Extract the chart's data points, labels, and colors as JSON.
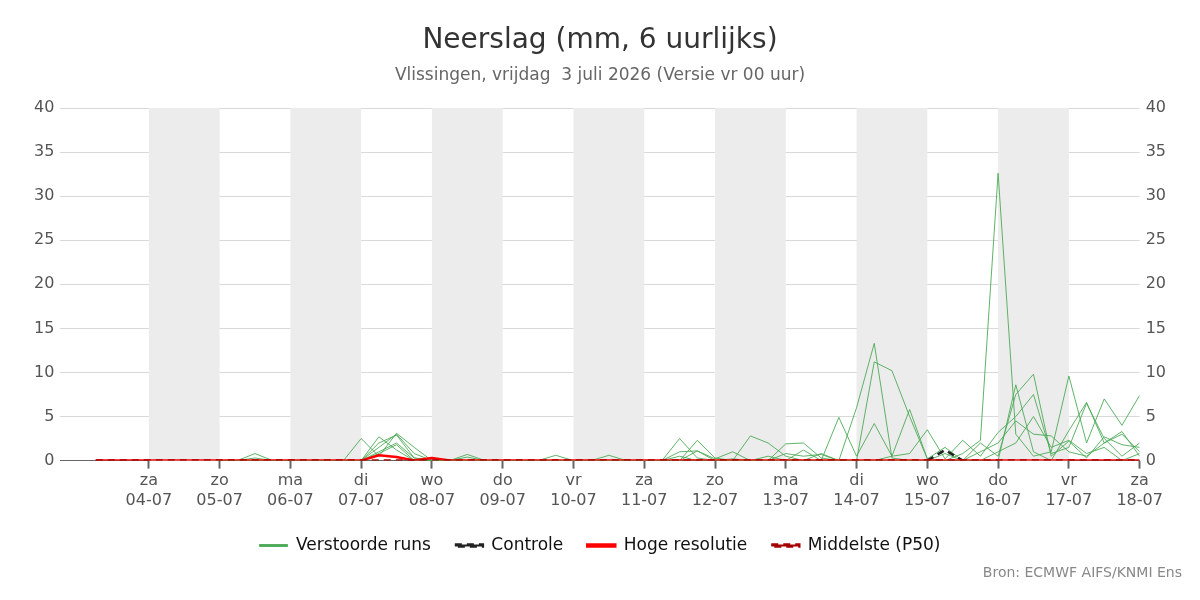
{
  "chart_data": {
    "type": "line",
    "title": "Neerslag (mm, 6 uurlijks)",
    "subtitle": "Vlissingen, vrijdag  3 juli 2026 (Versie vr 00 uur)",
    "x": [
      "2026-07-03T06:00",
      "2026-07-03T12:00",
      "2026-07-03T18:00",
      "2026-07-04T00:00",
      "2026-07-04T06:00",
      "2026-07-04T12:00",
      "2026-07-04T18:00",
      "2026-07-05T00:00",
      "2026-07-05T06:00",
      "2026-07-05T12:00",
      "2026-07-05T18:00",
      "2026-07-06T00:00",
      "2026-07-06T06:00",
      "2026-07-06T12:00",
      "2026-07-06T18:00",
      "2026-07-07T00:00",
      "2026-07-07T06:00",
      "2026-07-07T12:00",
      "2026-07-07T18:00",
      "2026-07-08T00:00",
      "2026-07-08T06:00",
      "2026-07-08T12:00",
      "2026-07-08T18:00",
      "2026-07-09T00:00",
      "2026-07-09T06:00",
      "2026-07-09T12:00",
      "2026-07-09T18:00",
      "2026-07-10T00:00",
      "2026-07-10T06:00",
      "2026-07-10T12:00",
      "2026-07-10T18:00",
      "2026-07-11T00:00",
      "2026-07-11T06:00",
      "2026-07-11T12:00",
      "2026-07-11T18:00",
      "2026-07-12T00:00",
      "2026-07-12T06:00",
      "2026-07-12T12:00",
      "2026-07-12T18:00",
      "2026-07-13T00:00",
      "2026-07-13T06:00",
      "2026-07-13T12:00",
      "2026-07-13T18:00",
      "2026-07-14T00:00",
      "2026-07-14T06:00",
      "2026-07-14T12:00",
      "2026-07-14T18:00",
      "2026-07-15T00:00",
      "2026-07-15T06:00",
      "2026-07-15T12:00",
      "2026-07-15T18:00",
      "2026-07-16T00:00",
      "2026-07-16T06:00",
      "2026-07-16T12:00",
      "2026-07-16T18:00",
      "2026-07-17T00:00",
      "2026-07-17T06:00",
      "2026-07-17T12:00",
      "2026-07-17T18:00",
      "2026-07-18T00:00"
    ],
    "series": [
      {
        "name": "Verstoorde runs",
        "color": "#4daa57",
        "values": [
          null,
          null,
          null,
          null,
          null,
          null,
          null,
          0,
          0,
          0.8,
          0,
          0,
          0,
          0,
          0,
          0,
          2.7,
          1.2,
          0,
          0,
          0,
          0,
          0,
          0,
          0,
          0,
          0.6,
          0,
          0,
          0,
          0,
          0,
          0,
          2.5,
          0.3,
          0,
          0,
          2.8,
          2.0,
          0.5,
          0,
          0,
          0,
          6.0,
          13.3,
          0.3,
          0,
          0,
          0,
          0.8,
          2.3,
          32.6,
          3.0,
          0.5,
          1.0,
          9.6,
          2.0,
          7.0,
          4.0,
          7.4
        ]
      },
      {
        "color": "#4daa57",
        "values": [
          null,
          null,
          null,
          null,
          null,
          null,
          null,
          0,
          0,
          0,
          0,
          0,
          0,
          0,
          0,
          2.5,
          0.5,
          3.1,
          1.5,
          0,
          0,
          0.7,
          0,
          0,
          0,
          0,
          0,
          0,
          0,
          0.6,
          0,
          0,
          0,
          0,
          2.3,
          0.3,
          0,
          0,
          0,
          1.9,
          2.0,
          0.3,
          0,
          0,
          11.2,
          10.2,
          5.0,
          0.2,
          0,
          0,
          0,
          0,
          8.6,
          1.0,
          0,
          3.4,
          6.6,
          2.0,
          3.3,
          0.5
        ]
      },
      {
        "color": "#4daa57",
        "values": [
          null,
          null,
          null,
          null,
          null,
          null,
          null,
          0,
          0,
          0,
          0,
          0,
          0,
          0,
          0,
          0,
          2.0,
          2.9,
          0.3,
          0,
          0,
          0,
          0,
          0,
          0,
          0,
          0,
          0,
          0,
          0,
          0,
          0,
          0,
          1.0,
          1.1,
          0.2,
          1.0,
          0,
          0.5,
          0,
          1.2,
          0,
          4.9,
          0.5,
          4.2,
          0.5,
          5.8,
          0.2,
          1.5,
          0,
          2.0,
          0.5,
          7.5,
          9.8,
          0.5,
          2.2,
          0.3,
          2.7,
          1.8,
          1.5
        ]
      },
      {
        "color": "#4daa57",
        "values": [
          null,
          null,
          null,
          null,
          null,
          null,
          null,
          0,
          0,
          0,
          0,
          0,
          0,
          0,
          0,
          0,
          1.5,
          3.0,
          0.8,
          0,
          0,
          0,
          0,
          0,
          0,
          0,
          0,
          0,
          0,
          0,
          0,
          0,
          0,
          0,
          0,
          0,
          0.2,
          0,
          0,
          0,
          0,
          0.8,
          0,
          0,
          0,
          0.5,
          0.8,
          3.5,
          0.2,
          2.3,
          0.5,
          3.2,
          5.0,
          7.5,
          0.8,
          1.5,
          6.5,
          2.5,
          0.5,
          2.0
        ]
      },
      {
        "color": "#4daa57",
        "values": [
          null,
          null,
          null,
          null,
          null,
          null,
          null,
          0,
          0,
          0.3,
          0,
          0,
          0,
          0,
          0,
          0,
          1.0,
          2.0,
          0.3,
          0,
          0,
          0.4,
          0,
          0,
          0,
          0,
          0,
          0,
          0,
          0,
          0,
          0,
          0,
          0,
          1.1,
          0,
          0,
          0,
          0,
          0.8,
          0.5,
          0.7,
          0,
          0,
          0,
          0,
          0,
          0,
          0.8,
          0,
          1.0,
          2.0,
          4.5,
          3.0,
          2.8,
          1.0,
          0.5,
          2.0,
          3.0,
          1.0
        ]
      },
      {
        "color": "#4daa57",
        "values": [
          null,
          null,
          null,
          null,
          null,
          null,
          null,
          0,
          0,
          0,
          0,
          0,
          0,
          0,
          0,
          0,
          0.8,
          1.8,
          0,
          0,
          0,
          0,
          0,
          0,
          0,
          0,
          0,
          0,
          0,
          0,
          0,
          0,
          0,
          0.5,
          0,
          0,
          0,
          0,
          0,
          0,
          0,
          0,
          0,
          0,
          0,
          0,
          0,
          0,
          0,
          0,
          0,
          1.0,
          2.0,
          5.0,
          1.5,
          2.3,
          0.8,
          1.5,
          0,
          0.8
        ]
      },
      {
        "name": "Controle",
        "color": "#222222",
        "line_style": "dashed",
        "values": [
          null,
          null,
          null,
          null,
          null,
          null,
          null,
          null,
          null,
          null,
          null,
          null,
          null,
          null,
          null,
          null,
          null,
          null,
          null,
          null,
          null,
          null,
          null,
          null,
          null,
          null,
          null,
          null,
          null,
          null,
          null,
          null,
          null,
          null,
          null,
          null,
          null,
          null,
          null,
          null,
          null,
          null,
          null,
          null,
          null,
          null,
          null,
          0,
          1.2,
          0,
          null,
          null,
          null,
          null,
          null,
          null,
          null,
          null,
          null,
          null
        ]
      },
      {
        "name": "Hoge resolutie",
        "color": "#ff0000",
        "line_style": "solid",
        "values": [
          0,
          0,
          0,
          0,
          0,
          0,
          0,
          0,
          0,
          0,
          0,
          0,
          0,
          0,
          0,
          0,
          0.6,
          0.4,
          0,
          0.3,
          0,
          0,
          0,
          0,
          0,
          0,
          0,
          0,
          0,
          0,
          0,
          0,
          0,
          0,
          0,
          0,
          0,
          0,
          0,
          0,
          0,
          0,
          0,
          0,
          0,
          0,
          0,
          0,
          0,
          0,
          0,
          0,
          0,
          0,
          0,
          0,
          0,
          0,
          0,
          0
        ]
      },
      {
        "name": "Middelste (P50)",
        "color": "#a50000",
        "line_style": "dashed",
        "values": [
          0,
          0,
          0,
          0,
          0,
          0,
          0,
          0,
          0,
          0,
          0,
          0,
          0,
          0,
          0,
          0,
          0,
          0,
          0,
          0,
          0,
          0,
          0,
          0,
          0,
          0,
          0,
          0,
          0,
          0,
          0,
          0,
          0,
          0,
          0,
          0,
          0,
          0,
          0,
          0,
          0,
          0,
          0,
          0,
          0,
          0,
          0,
          0,
          0,
          0,
          0,
          0,
          0,
          0,
          0,
          0,
          0,
          0,
          0,
          0
        ]
      }
    ],
    "xlim": [
      "2026-07-02T18:00",
      "2026-07-18T00:00"
    ],
    "xticks": [
      {
        "value": "2026-07-04",
        "label": "za 04-07"
      },
      {
        "value": "2026-07-05",
        "label": "zo 05-07"
      },
      {
        "value": "2026-07-06",
        "label": "ma 06-07"
      },
      {
        "value": "2026-07-07",
        "label": "di 07-07"
      },
      {
        "value": "2026-07-08",
        "label": "wo 08-07"
      },
      {
        "value": "2026-07-09",
        "label": "do 09-07"
      },
      {
        "value": "2026-07-10",
        "label": "vr 10-07"
      },
      {
        "value": "2026-07-11",
        "label": "za 11-07"
      },
      {
        "value": "2026-07-12",
        "label": "zo 12-07"
      },
      {
        "value": "2026-07-13",
        "label": "ma 13-07"
      },
      {
        "value": "2026-07-14",
        "label": "di 14-07"
      },
      {
        "value": "2026-07-15",
        "label": "wo 15-07"
      },
      {
        "value": "2026-07-16",
        "label": "do 16-07"
      },
      {
        "value": "2026-07-17",
        "label": "vr 17-07"
      },
      {
        "value": "2026-07-18",
        "label": "za 18-07"
      }
    ],
    "ylim": [
      0,
      40
    ],
    "yticks": [
      0,
      5,
      10,
      15,
      20,
      25,
      30,
      35,
      40
    ],
    "y2lim": [
      0,
      40
    ],
    "y2ticks": [
      0,
      5,
      10,
      15,
      20,
      25,
      30,
      35,
      40
    ],
    "bands": [
      {
        "axis": "x",
        "from": "2026-07-04",
        "to": "2026-07-05",
        "color": "#ececec"
      },
      {
        "axis": "x",
        "from": "2026-07-06",
        "to": "2026-07-07",
        "color": "#ececec"
      },
      {
        "axis": "x",
        "from": "2026-07-08",
        "to": "2026-07-09",
        "color": "#ececec"
      },
      {
        "axis": "x",
        "from": "2026-07-10",
        "to": "2026-07-11",
        "color": "#ececec"
      },
      {
        "axis": "x",
        "from": "2026-07-12",
        "to": "2026-07-13",
        "color": "#ececec"
      },
      {
        "axis": "x",
        "from": "2026-07-14",
        "to": "2026-07-15",
        "color": "#ececec"
      },
      {
        "axis": "x",
        "from": "2026-07-16",
        "to": "2026-07-17",
        "color": "#ececec"
      }
    ],
    "grid": "y",
    "legend": "bottom",
    "marker": "none",
    "annotations": [
      "Bron: ECMWF AIFS/KNMI Ens"
    ]
  }
}
